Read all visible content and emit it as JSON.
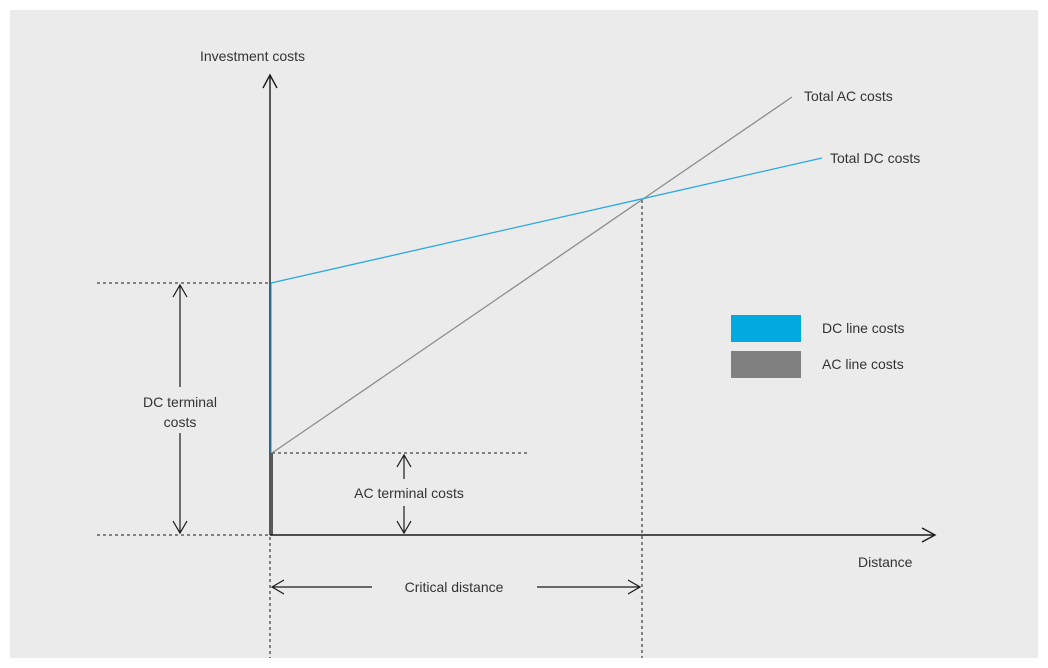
{
  "diagram": {
    "y_axis_label": "Investment costs",
    "x_axis_label": "Distance",
    "total_ac_label": "Total AC costs",
    "total_dc_label": "Total DC costs",
    "dc_terminal_label_line1": "DC terminal",
    "dc_terminal_label_line2": "costs",
    "ac_terminal_label": "AC terminal costs",
    "critical_distance_label": "Critical distance"
  },
  "legend": {
    "items": [
      {
        "label": "DC line costs",
        "color": "#00a9e0"
      },
      {
        "label": "AC line costs",
        "color": "#808080"
      }
    ]
  },
  "colors": {
    "background": "#ebebeb",
    "axis": "#1a1a1a",
    "dc_line": "#29a9e0",
    "ac_line": "#8c8c8c",
    "text": "#333333"
  }
}
